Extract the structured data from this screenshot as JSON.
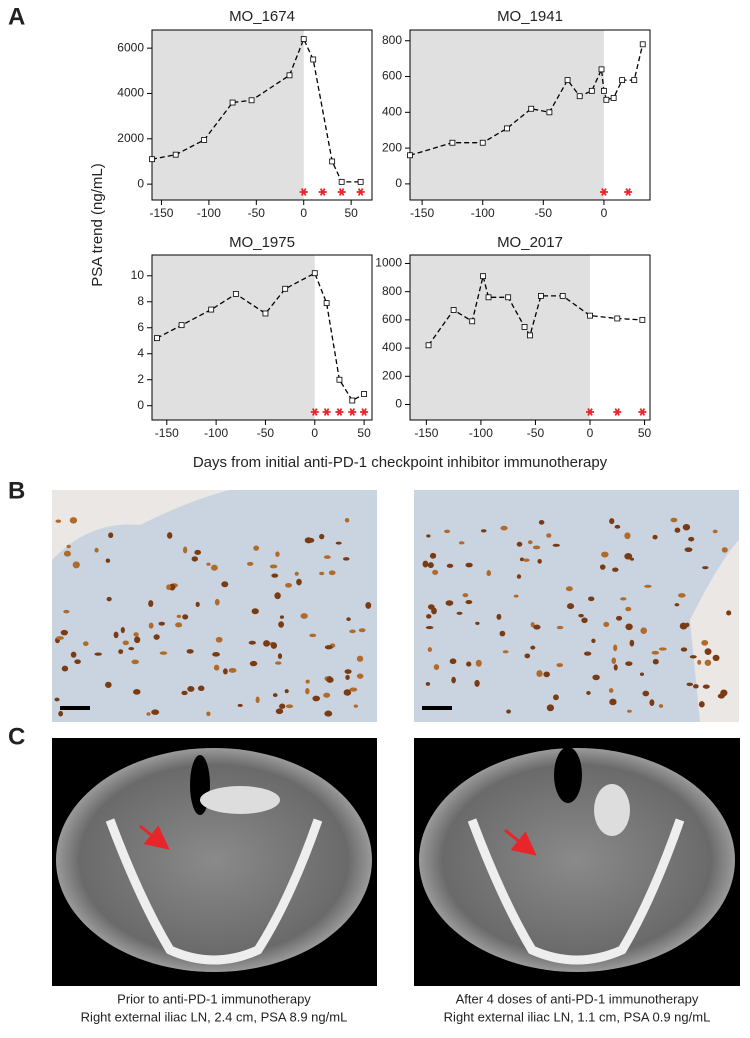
{
  "panel_labels": [
    "A",
    "B",
    "C"
  ],
  "shared_y_label": "PSA trend (ng/mL)",
  "shared_x_label": "Days from initial anti-PD-1 checkpoint inhibitor immunotherapy",
  "chart_data": [
    {
      "type": "line",
      "title": "MO_1674",
      "color": "#000000",
      "treatment_color": "#e8262a",
      "shade_color": "#e0e0e0",
      "x": [
        -160,
        -135,
        -105,
        -75,
        -55,
        -15,
        0,
        10,
        30,
        40,
        60
      ],
      "values": [
        1100,
        1300,
        1950,
        3600,
        3700,
        4800,
        6400,
        5500,
        1000,
        100,
        100
      ],
      "treatment_days": [
        0,
        20,
        40,
        60
      ],
      "xlim": [
        -160,
        72
      ],
      "ylim": [
        -700,
        6800
      ],
      "xticks": [
        -150,
        -100,
        -50,
        0,
        50
      ],
      "yticks": [
        0,
        2000,
        4000,
        6000
      ]
    },
    {
      "type": "line",
      "title": "MO_1941",
      "color": "#000000",
      "treatment_color": "#e8262a",
      "shade_color": "#e0e0e0",
      "x": [
        -160,
        -125,
        -100,
        -80,
        -60,
        -45,
        -30,
        -20,
        -10,
        -2,
        0,
        2,
        8,
        15,
        25,
        32
      ],
      "values": [
        160,
        230,
        230,
        310,
        420,
        400,
        580,
        490,
        520,
        640,
        520,
        470,
        480,
        580,
        580,
        780
      ],
      "treatment_days": [
        0,
        20
      ],
      "xlim": [
        -160,
        38
      ],
      "ylim": [
        -90,
        860
      ],
      "xticks": [
        -150,
        -100,
        -50,
        0
      ],
      "yticks": [
        0,
        200,
        400,
        600,
        800
      ]
    },
    {
      "type": "line",
      "title": "MO_1975",
      "color": "#000000",
      "treatment_color": "#e8262a",
      "shade_color": "#e0e0e0",
      "x": [
        -160,
        -135,
        -105,
        -80,
        -50,
        -30,
        0,
        12,
        25,
        38,
        50
      ],
      "values": [
        5.2,
        6.2,
        7.4,
        8.6,
        7.1,
        9,
        10.2,
        7.9,
        2,
        0.4,
        0.9
      ],
      "treatment_days": [
        0,
        12,
        25,
        38,
        50
      ],
      "xlim": [
        -165,
        58
      ],
      "ylim": [
        -1.1,
        11.6
      ],
      "xticks": [
        -150,
        -100,
        -50,
        0,
        50
      ],
      "yticks": [
        0,
        2,
        4,
        6,
        8,
        10
      ]
    },
    {
      "type": "line",
      "title": "MO_2017",
      "color": "#000000",
      "treatment_color": "#e8262a",
      "shade_color": "#e0e0e0",
      "x": [
        -148,
        -125,
        -108,
        -98,
        -93,
        -75,
        -60,
        -55,
        -45,
        -25,
        0,
        25,
        48
      ],
      "values": [
        420,
        670,
        590,
        910,
        760,
        760,
        550,
        490,
        770,
        770,
        630,
        610,
        600
      ],
      "treatment_days": [
        0,
        25,
        48
      ],
      "xlim": [
        -165,
        55
      ],
      "ylim": [
        -110,
        1060
      ],
      "xticks": [
        -150,
        -100,
        -50,
        0,
        50
      ],
      "yticks": [
        0,
        200,
        400,
        600,
        800,
        1000
      ]
    }
  ],
  "captions": [
    [
      "Prior to anti-PD-1 immunotherapy",
      "Right external iliac LN, 2.4 cm, PSA 8.9 ng/mL"
    ],
    [
      "After 4 doses of anti-PD-1 immunotherapy",
      "Right external iliac LN, 1.1 cm, PSA 0.9 ng/mL"
    ]
  ]
}
